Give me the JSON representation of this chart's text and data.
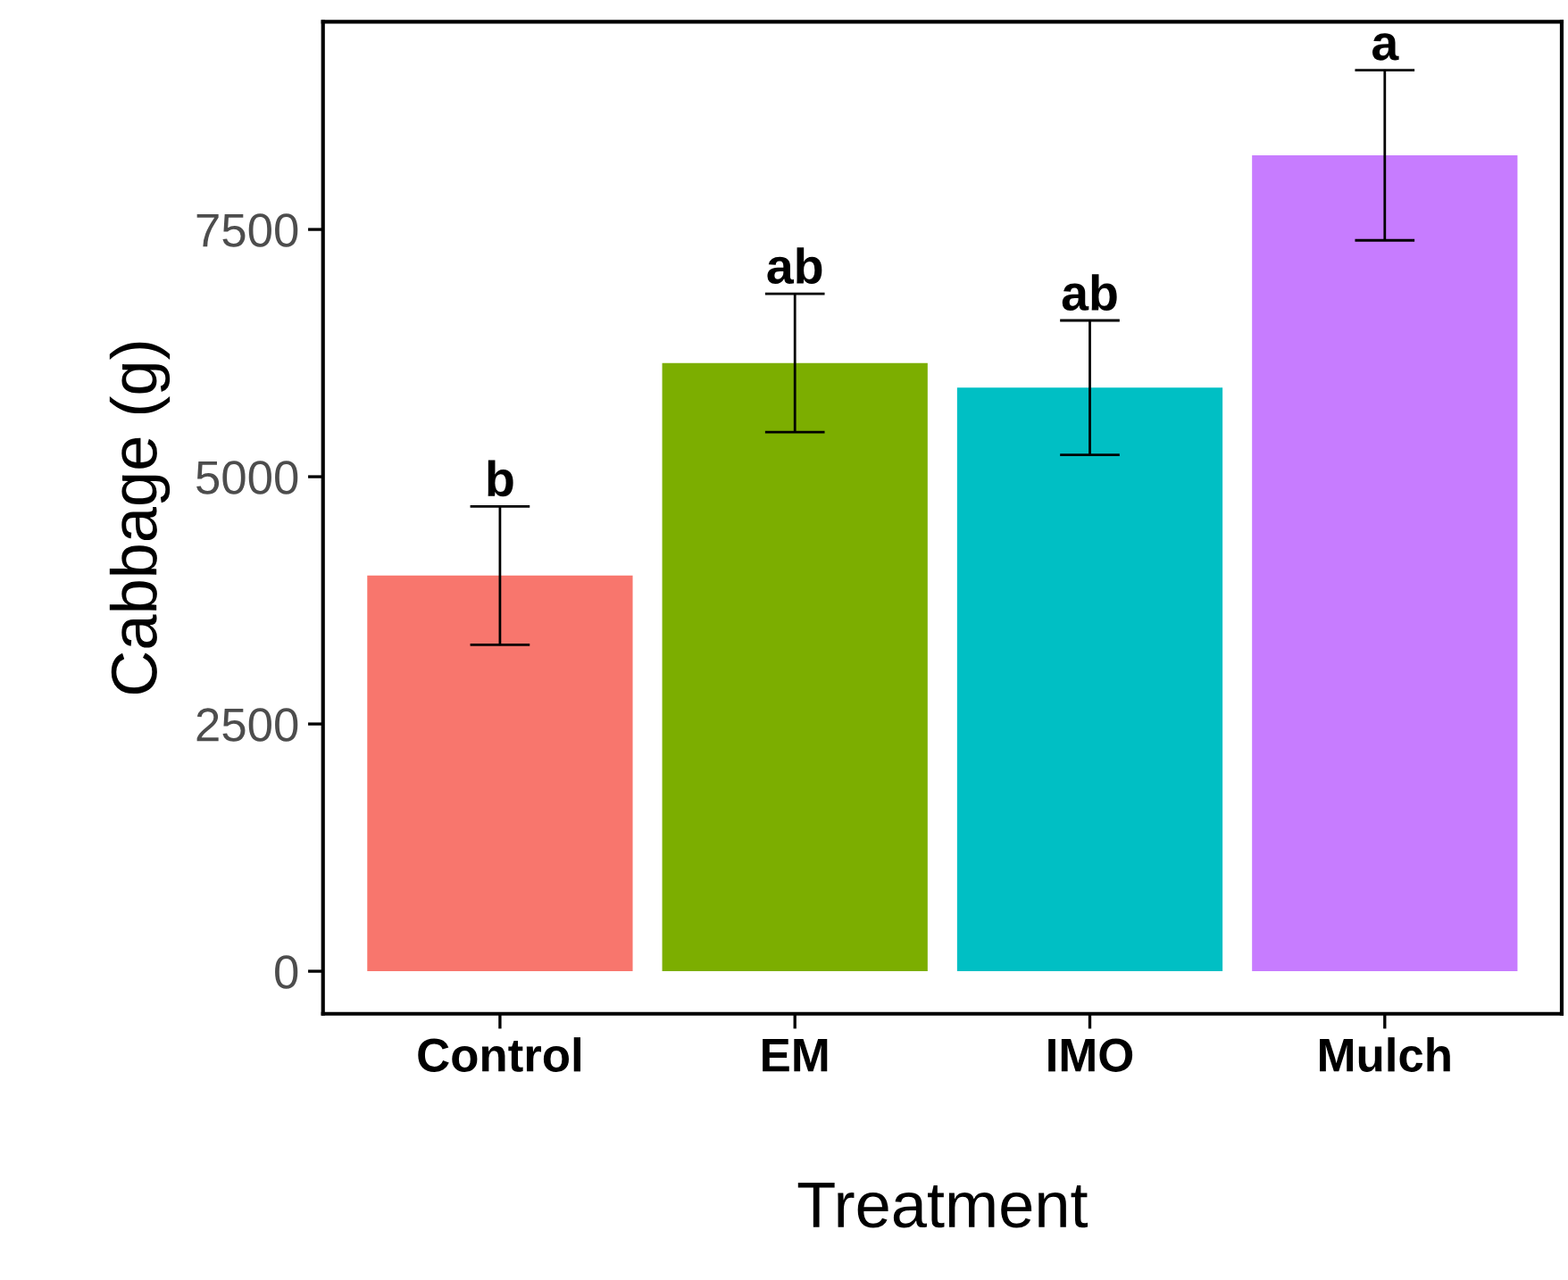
{
  "chart_data": {
    "type": "bar",
    "xlabel": "Treatment",
    "ylabel": "Cabbage (g)",
    "categories": [
      "Control",
      "EM",
      "IMO",
      "Mulch"
    ],
    "values": [
      4000,
      6150,
      5900,
      8250
    ],
    "colors": [
      "#f8766d",
      "#7cae00",
      "#00bfc4",
      "#c77cff"
    ],
    "errors": [
      700,
      700,
      680,
      860
    ],
    "ylim": [
      -430,
      9600
    ],
    "yticks": [
      0,
      2500,
      5000,
      7500
    ],
    "grid": false,
    "legend": false,
    "annotations": [
      {
        "text": "b",
        "x": "Control",
        "y": 4700
      },
      {
        "text": "ab",
        "x": "EM",
        "y": 6850
      },
      {
        "text": "ab",
        "x": "IMO",
        "y": 6580
      },
      {
        "text": "a",
        "x": "Mulch",
        "y": 9110
      }
    ]
  }
}
